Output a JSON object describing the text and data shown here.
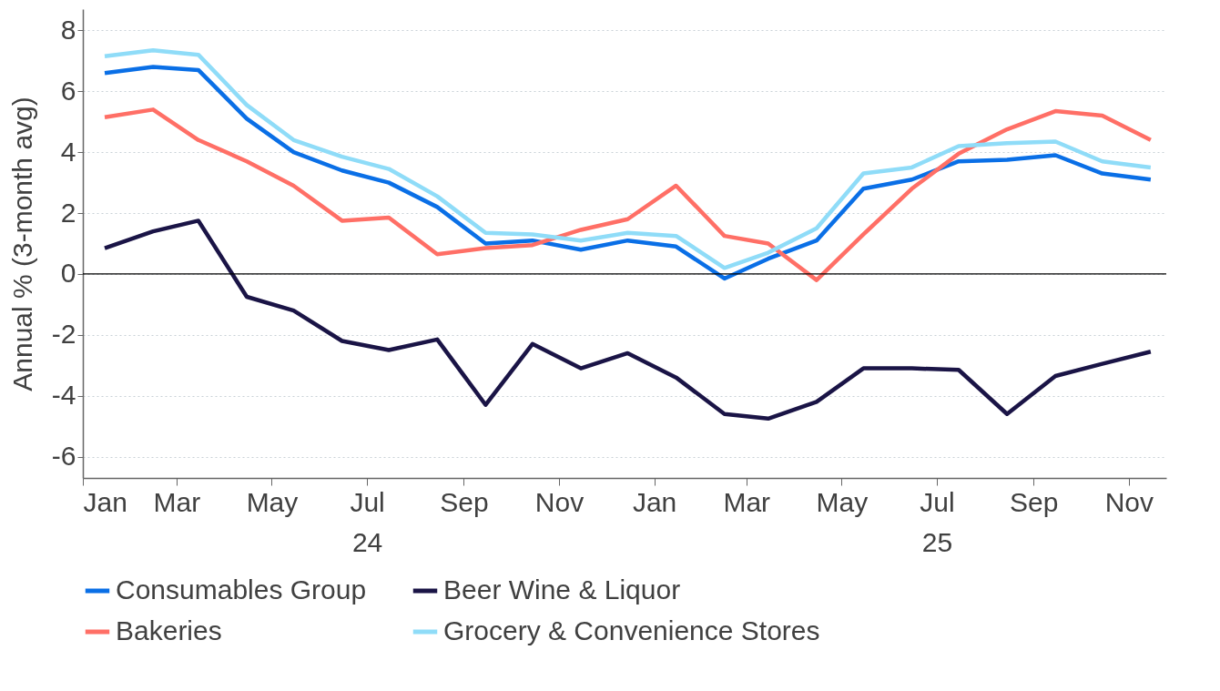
{
  "chart_data": {
    "type": "line",
    "ylabel": "Annual % (3-month avg)",
    "x": [
      "2024-01-15",
      "2024-02-15",
      "2024-03-15",
      "2024-04-15",
      "2024-05-15",
      "2024-06-15",
      "2024-07-15",
      "2024-08-15",
      "2024-09-15",
      "2024-10-15",
      "2024-11-15",
      "2024-12-15",
      "2025-01-15",
      "2025-02-15",
      "2025-03-15",
      "2025-04-15",
      "2025-05-15",
      "2025-06-15",
      "2025-07-15",
      "2025-08-15",
      "2025-09-15",
      "2025-10-15",
      "2025-11-15"
    ],
    "series": [
      {
        "name": "Consumables Group",
        "color": "#0a6fe6",
        "values": [
          6.6,
          6.8,
          6.7,
          5.1,
          4.0,
          3.4,
          3.0,
          2.2,
          1.0,
          1.1,
          0.8,
          1.1,
          0.9,
          -0.15,
          0.5,
          1.1,
          2.8,
          3.1,
          3.7,
          3.75,
          3.9,
          3.3,
          3.1
        ]
      },
      {
        "name": "Beer Wine & Liquor",
        "color": "#1a1446",
        "values": [
          0.85,
          1.4,
          1.75,
          -0.75,
          -1.2,
          -2.2,
          -2.5,
          -2.15,
          -4.3,
          -2.3,
          -3.1,
          -2.6,
          -3.4,
          -4.6,
          -4.75,
          -4.2,
          -3.1,
          -3.1,
          -3.15,
          -4.6,
          -3.35,
          -2.95,
          -2.55
        ]
      },
      {
        "name": "Bakeries",
        "color": "#ff6f66",
        "values": [
          5.15,
          5.4,
          4.4,
          3.7,
          2.9,
          1.75,
          1.85,
          0.65,
          0.85,
          0.95,
          1.45,
          1.8,
          2.9,
          1.25,
          1.0,
          -0.2,
          1.3,
          2.8,
          3.95,
          4.75,
          5.35,
          5.2,
          4.4
        ]
      },
      {
        "name": "Grocery & Convenience Stores",
        "color": "#8fdcf8",
        "values": [
          7.15,
          7.35,
          7.2,
          5.55,
          4.4,
          3.85,
          3.45,
          2.55,
          1.35,
          1.3,
          1.1,
          1.35,
          1.25,
          0.2,
          0.7,
          1.5,
          3.3,
          3.5,
          4.2,
          4.3,
          4.35,
          3.7,
          3.5
        ]
      }
    ],
    "xlim": [
      "2024-01-01",
      "2025-11-25"
    ],
    "xticks": [
      {
        "value": "2024-01",
        "label": "Jan"
      },
      {
        "value": "2024-03",
        "label": "Mar"
      },
      {
        "value": "2024-05",
        "label": "May"
      },
      {
        "value": "2024-07",
        "label": "Jul\n24"
      },
      {
        "value": "2024-09",
        "label": "Sep"
      },
      {
        "value": "2024-11",
        "label": "Nov"
      },
      {
        "value": "2025-01",
        "label": "Jan"
      },
      {
        "value": "2025-03",
        "label": "Mar"
      },
      {
        "value": "2025-05",
        "label": "May"
      },
      {
        "value": "2025-07",
        "label": "Jul\n25"
      },
      {
        "value": "2025-09",
        "label": "Sep"
      },
      {
        "value": "2025-11",
        "label": "Nov"
      }
    ],
    "ylim": [
      -6.7,
      8.7
    ],
    "yticks": [
      -6,
      -4,
      -2,
      0,
      2,
      4,
      6,
      8
    ],
    "ref_lines": [
      {
        "axis": "y",
        "value": 0,
        "color": "#000000"
      }
    ],
    "grid": "y",
    "legend": "bottom",
    "marker": "none",
    "line_style": "solid"
  }
}
